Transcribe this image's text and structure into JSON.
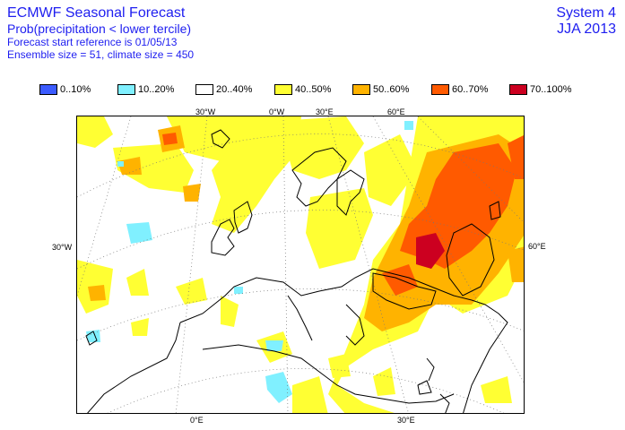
{
  "header": {
    "title": "ECMWF Seasonal Forecast",
    "line1": "Prob(precipitation < lower tercile)",
    "line2": "Forecast start reference is 01/05/13",
    "line3": "Ensemble size = 51, climate size = 450",
    "system": "System 4",
    "season": "JJA 2013"
  },
  "legend": [
    {
      "label": "0..10%",
      "color": "#3b5bff"
    },
    {
      "label": "10..20%",
      "color": "#80f0ff"
    },
    {
      "label": "20..40%",
      "color": "#ffffff"
    },
    {
      "label": "40..50%",
      "color": "#ffff33"
    },
    {
      "label": "50..60%",
      "color": "#ffb300"
    },
    {
      "label": "60..70%",
      "color": "#ff5a00"
    },
    {
      "label": "70..100%",
      "color": "#cc0020"
    }
  ],
  "axis_labels": {
    "top": [
      "30°W",
      "0°W",
      "30°E",
      "60°E"
    ],
    "left": "30°W",
    "right": "60°E",
    "bottom": [
      "0°E",
      "30°E"
    ]
  }
}
